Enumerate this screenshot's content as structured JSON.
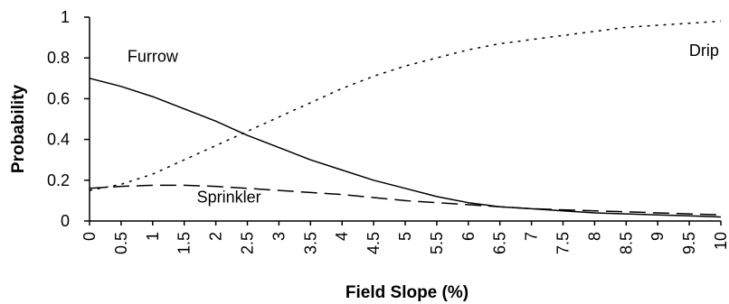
{
  "chart_data": {
    "type": "line",
    "title": "",
    "xlabel": "Field Slope (%)",
    "ylabel": "Probability",
    "xlim": [
      0,
      10
    ],
    "ylim": [
      0,
      1
    ],
    "x_ticks": [
      "0",
      "0.5",
      "1",
      "1.5",
      "2",
      "2.5",
      "3",
      "3.5",
      "4",
      "4.5",
      "5",
      "5.5",
      "6",
      "6.5",
      "7",
      "7.5",
      "8",
      "8.5",
      "9",
      "9.5",
      "10"
    ],
    "y_ticks": [
      "0",
      "0.2",
      "0.4",
      "0.6",
      "0.8",
      "1"
    ],
    "grid": false,
    "legend": "none",
    "x": [
      0,
      0.5,
      1,
      1.5,
      2,
      2.5,
      3,
      3.5,
      4,
      4.5,
      5,
      5.5,
      6,
      6.5,
      7,
      7.5,
      8,
      8.5,
      9,
      9.5,
      10
    ],
    "series": [
      {
        "name": "Furrow",
        "style": "solid",
        "values": [
          0.7,
          0.66,
          0.61,
          0.55,
          0.49,
          0.42,
          0.36,
          0.3,
          0.25,
          0.2,
          0.16,
          0.12,
          0.09,
          0.07,
          0.06,
          0.05,
          0.04,
          0.035,
          0.03,
          0.025,
          0.02
        ]
      },
      {
        "name": "Sprinkler",
        "style": "long-dash",
        "values": [
          0.16,
          0.17,
          0.175,
          0.175,
          0.17,
          0.16,
          0.15,
          0.14,
          0.13,
          0.115,
          0.1,
          0.09,
          0.08,
          0.07,
          0.06,
          0.055,
          0.05,
          0.045,
          0.04,
          0.035,
          0.03
        ]
      },
      {
        "name": "Drip",
        "style": "dotted",
        "values": [
          0.15,
          0.18,
          0.23,
          0.3,
          0.37,
          0.44,
          0.51,
          0.58,
          0.65,
          0.71,
          0.76,
          0.8,
          0.84,
          0.87,
          0.89,
          0.91,
          0.93,
          0.95,
          0.96,
          0.97,
          0.98
        ]
      }
    ],
    "annotations": [
      {
        "text": "Furrow",
        "series": "Furrow"
      },
      {
        "text": "Sprinkler",
        "series": "Sprinkler"
      },
      {
        "text": "Drip",
        "series": "Drip"
      }
    ]
  }
}
